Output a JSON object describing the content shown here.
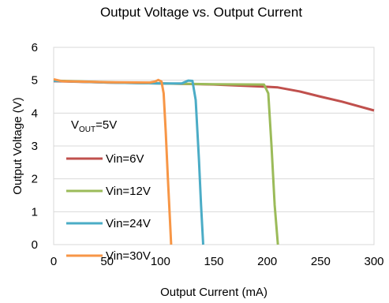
{
  "chart_data": {
    "type": "line",
    "title": "Output Voltage vs. Output Current",
    "xlabel": "Output Current (mA)",
    "ylabel": "Output Voltage (V)",
    "xlim": [
      0,
      300
    ],
    "ylim": [
      0,
      6
    ],
    "x_ticks": [
      "0",
      "50",
      "100",
      "150",
      "200",
      "250",
      "300"
    ],
    "y_ticks": [
      "0",
      "1",
      "2",
      "3",
      "4",
      "5",
      "6"
    ],
    "grid": "horizontal",
    "annotation": {
      "prefix": "V",
      "subscript": "OUT",
      "suffix": "=5V"
    },
    "legend_position": "left",
    "series": [
      {
        "name": "Vin=6V",
        "color": "#c0504d",
        "points": [
          [
            0,
            4.97
          ],
          [
            50,
            4.93
          ],
          [
            100,
            4.9
          ],
          [
            150,
            4.87
          ],
          [
            200,
            4.8
          ],
          [
            210,
            4.78
          ],
          [
            230,
            4.66
          ],
          [
            250,
            4.5
          ],
          [
            270,
            4.35
          ],
          [
            300,
            4.08
          ]
        ]
      },
      {
        "name": "Vin=12V",
        "color": "#9bbb59",
        "points": [
          [
            0,
            4.99
          ],
          [
            50,
            4.94
          ],
          [
            100,
            4.9
          ],
          [
            150,
            4.88
          ],
          [
            197,
            4.87
          ],
          [
            201,
            4.6
          ],
          [
            204,
            3.0
          ],
          [
            207,
            1.2
          ],
          [
            210,
            0
          ]
        ]
      },
      {
        "name": "Vin=24V",
        "color": "#4bacc6",
        "points": [
          [
            0,
            4.98
          ],
          [
            50,
            4.93
          ],
          [
            100,
            4.9
          ],
          [
            120,
            4.9
          ],
          [
            126,
            4.99
          ],
          [
            130,
            4.98
          ],
          [
            133,
            4.4
          ],
          [
            136,
            2.6
          ],
          [
            138,
            1.2
          ],
          [
            140,
            0
          ]
        ]
      },
      {
        "name": "Vin=30V",
        "color": "#f79646",
        "points": [
          [
            0,
            5.03
          ],
          [
            8,
            4.97
          ],
          [
            50,
            4.94
          ],
          [
            90,
            4.93
          ],
          [
            95,
            4.96
          ],
          [
            98,
            5.01
          ],
          [
            101,
            4.96
          ],
          [
            103,
            4.6
          ],
          [
            105,
            3.4
          ],
          [
            107,
            2.0
          ],
          [
            109,
            0.7
          ],
          [
            110,
            0
          ]
        ]
      }
    ]
  }
}
